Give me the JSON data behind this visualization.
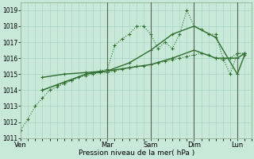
{
  "background_color": "#c8e8d8",
  "grid_color": "#a8d8c8",
  "xlabel": "Pression niveau de la mer( hPa )",
  "ylim": [
    1011,
    1019.5
  ],
  "yticks": [
    1011,
    1012,
    1013,
    1014,
    1015,
    1016,
    1017,
    1018,
    1019
  ],
  "day_labels": [
    "Ven",
    "Mar",
    "Sam",
    "Dim",
    "Lun"
  ],
  "day_positions": [
    0,
    36,
    54,
    72,
    90
  ],
  "xlim": [
    0,
    96
  ],
  "vline_positions": [
    36,
    54,
    72,
    90
  ],
  "series": [
    {
      "x": [
        0,
        3,
        6,
        9,
        12,
        15,
        18,
        21,
        24,
        27,
        30,
        33,
        36,
        39,
        42,
        45,
        48,
        51,
        54,
        57,
        60,
        63,
        66,
        69,
        72,
        75,
        78,
        81,
        84,
        87,
        90,
        93
      ],
      "y": [
        1011.5,
        1012.2,
        1013.0,
        1013.5,
        1014.0,
        1014.2,
        1014.4,
        1014.6,
        1014.8,
        1014.9,
        1015.0,
        1015.1,
        1015.1,
        1015.2,
        1015.3,
        1015.4,
        1015.5,
        1015.5,
        1015.6,
        1015.7,
        1015.8,
        1015.9,
        1016.0,
        1016.1,
        1016.2,
        1016.3,
        1016.2,
        1016.0,
        1015.9,
        1016.0,
        1016.3,
        1016.3
      ],
      "style": "dotted",
      "marker": "+",
      "markersize": 3,
      "linewidth": 0.8,
      "color": "#2d6e2d"
    },
    {
      "x": [
        9,
        15,
        21,
        27,
        33,
        36,
        39,
        42,
        45,
        48,
        51,
        54,
        57,
        60,
        63,
        66,
        69,
        72,
        75,
        78,
        81,
        84,
        87,
        90,
        93
      ],
      "y": [
        1014.0,
        1014.3,
        1014.6,
        1015.0,
        1015.2,
        1015.3,
        1016.8,
        1017.2,
        1017.5,
        1018.0,
        1018.0,
        1017.5,
        1016.6,
        1017.0,
        1016.6,
        1017.5,
        1019.0,
        1018.0,
        1017.8,
        1017.5,
        1017.5,
        1016.0,
        1015.0,
        1016.3,
        1016.3
      ],
      "style": "dotted",
      "marker": "+",
      "markersize": 3,
      "linewidth": 0.8,
      "color": "#2d6e2d"
    },
    {
      "x": [
        9,
        18,
        27,
        36,
        45,
        54,
        63,
        72,
        81,
        90,
        93
      ],
      "y": [
        1014.0,
        1014.5,
        1015.0,
        1015.2,
        1015.7,
        1016.5,
        1017.5,
        1018.0,
        1017.3,
        1015.0,
        1016.2
      ],
      "style": "solid",
      "marker": "+",
      "markersize": 3,
      "linewidth": 1.0,
      "color": "#2d6e2d"
    },
    {
      "x": [
        9,
        18,
        27,
        36,
        45,
        54,
        63,
        72,
        81,
        90,
        93
      ],
      "y": [
        1014.8,
        1015.0,
        1015.1,
        1015.2,
        1015.4,
        1015.6,
        1016.0,
        1016.5,
        1016.0,
        1016.0,
        1016.3
      ],
      "style": "solid",
      "marker": "+",
      "markersize": 3,
      "linewidth": 1.0,
      "color": "#2d6e2d"
    }
  ]
}
